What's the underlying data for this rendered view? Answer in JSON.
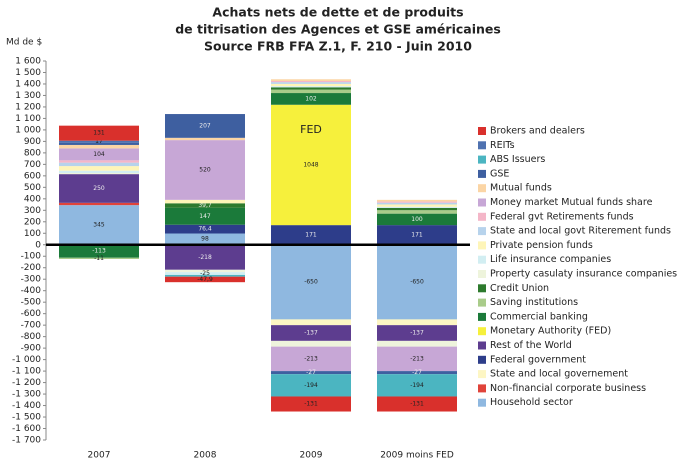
{
  "chart_data": {
    "type": "stacked-bar",
    "title": [
      "Achats nets de dette et de produits",
      "de titrisation des Agences et GSE américaines",
      "Source FRB FFA Z.1, F. 210 - Juin 2010"
    ],
    "ylabel": "Md de $",
    "annotation": "FED",
    "categories": [
      "2007",
      "2008",
      "2009",
      "2009 moins FED"
    ],
    "ylim": [
      -1700,
      1600
    ],
    "yticks": [
      {
        "value": 1600,
        "label": "1 600"
      },
      {
        "value": 1500,
        "label": "1 500"
      },
      {
        "value": 1400,
        "label": "1 400"
      },
      {
        "value": 1300,
        "label": "1 300"
      },
      {
        "value": 1200,
        "label": "1 200"
      },
      {
        "value": 1100,
        "label": "1 100"
      },
      {
        "value": 1000,
        "label": "1 000"
      },
      900,
      800,
      700,
      600,
      500,
      400,
      300,
      200,
      100,
      0,
      -100,
      -200,
      -300,
      -400,
      -500,
      -600,
      -700,
      -800,
      -900,
      {
        "value": -1000,
        "label": "-1 000"
      },
      {
        "value": -1100,
        "label": "-1 100"
      },
      {
        "value": -1200,
        "label": "-1 200"
      },
      {
        "value": -1300,
        "label": "-1 300"
      },
      {
        "value": -1400,
        "label": "-1 400"
      },
      {
        "value": -1500,
        "label": "-1 500"
      },
      {
        "value": -1600,
        "label": "-1 600"
      },
      {
        "value": -1700,
        "label": "-1 700"
      }
    ],
    "series": [
      {
        "name": "Household sector",
        "color": "#8fb8e0",
        "values": [
          345,
          98,
          -650,
          -650
        ],
        "value_labels": [
          "345",
          "98",
          "-650",
          "-650"
        ]
      },
      {
        "name": "Non-financial corporate business",
        "color": "#e0433a",
        "values": [
          20,
          0,
          0,
          0
        ],
        "value_labels": [
          null,
          null,
          null,
          null
        ]
      },
      {
        "name": "State and local governement",
        "color": "#fdf6c4",
        "values": [
          0,
          0,
          -50,
          -50
        ],
        "value_labels": [
          null,
          null,
          null,
          null
        ]
      },
      {
        "name": "Federal government",
        "color": "#2d3d8a",
        "values": [
          0,
          76.4,
          171,
          171
        ],
        "value_labels": [
          null,
          "76,4",
          "171",
          "171"
        ]
      },
      {
        "name": "Rest of the World",
        "color": "#5d3d8f",
        "values": [
          250,
          -218,
          -137,
          -137
        ],
        "value_labels": [
          "250",
          "-218",
          "-137",
          "-137"
        ]
      },
      {
        "name": "Monetary Authority (FED)",
        "color": "#f6f03c",
        "values": [
          0,
          0,
          1048,
          0
        ],
        "value_labels": [
          null,
          null,
          "1048",
          null
        ]
      },
      {
        "name": "Commercial banking",
        "color": "#1b7a3a",
        "values": [
          -113,
          147,
          102,
          100
        ],
        "value_labels": [
          "-113",
          "147",
          "102",
          "100"
        ]
      },
      {
        "name": "Saving institutions",
        "color": "#a9cc8a",
        "values": [
          -11,
          0,
          30,
          30
        ],
        "value_labels": [
          "-11",
          null,
          null,
          null
        ]
      },
      {
        "name": "Credit Union",
        "color": "#2d7a2d",
        "values": [
          0,
          39.7,
          20,
          20
        ],
        "value_labels": [
          null,
          "39,7",
          null,
          null
        ]
      },
      {
        "name": "Property casulaty insurance companies",
        "color": "#eef4dc",
        "values": [
          10,
          -20,
          -50,
          -50
        ],
        "value_labels": [
          null,
          null,
          null,
          null
        ]
      },
      {
        "name": "Life insurance companies",
        "color": "#d2eef2",
        "values": [
          20,
          -25,
          10,
          10
        ],
        "value_labels": [
          null,
          "-25",
          null,
          null
        ]
      },
      {
        "name": "Private pension funds",
        "color": "#fef5b8",
        "values": [
          40,
          30,
          20,
          20
        ],
        "value_labels": [
          null,
          null,
          null,
          null
        ]
      },
      {
        "name": "State and local govt Riterement funds",
        "color": "#b7d3ec",
        "values": [
          30,
          0,
          15,
          15
        ],
        "value_labels": [
          null,
          null,
          null,
          null
        ]
      },
      {
        "name": "Federal gvt Retirements funds",
        "color": "#f4b6c8",
        "values": [
          20,
          0,
          10,
          10
        ],
        "value_labels": [
          null,
          null,
          null,
          null
        ]
      },
      {
        "name": "Money market Mutual funds share",
        "color": "#c7a7d6",
        "values": [
          104,
          520,
          -213,
          -213
        ],
        "value_labels": [
          "104",
          "520",
          "-213",
          "-213"
        ]
      },
      {
        "name": "Mutual funds",
        "color": "#fbd5a5",
        "values": [
          30,
          20,
          15,
          15
        ],
        "value_labels": [
          null,
          null,
          null,
          null
        ]
      },
      {
        "name": "GSE",
        "color": "#3e5fa0",
        "values": [
          20,
          207,
          -27,
          -27
        ],
        "value_labels": [
          null,
          "207",
          "-27",
          "-27"
        ]
      },
      {
        "name": "ABS Issuers",
        "color": "#4bb5c1",
        "values": [
          0,
          -15,
          -194,
          -194
        ],
        "value_labels": [
          null,
          null,
          "-194",
          "-194"
        ]
      },
      {
        "name": "REITs",
        "color": "#4f72b0",
        "values": [
          17,
          0,
          0,
          0
        ],
        "value_labels": [
          "17",
          null,
          null,
          null
        ]
      },
      {
        "name": "Brokers and dealers",
        "color": "#d9302c",
        "values": [
          131,
          -47.9,
          -131,
          -131
        ],
        "value_labels": [
          "131",
          "-47,9",
          "-131",
          "-131"
        ]
      }
    ]
  }
}
